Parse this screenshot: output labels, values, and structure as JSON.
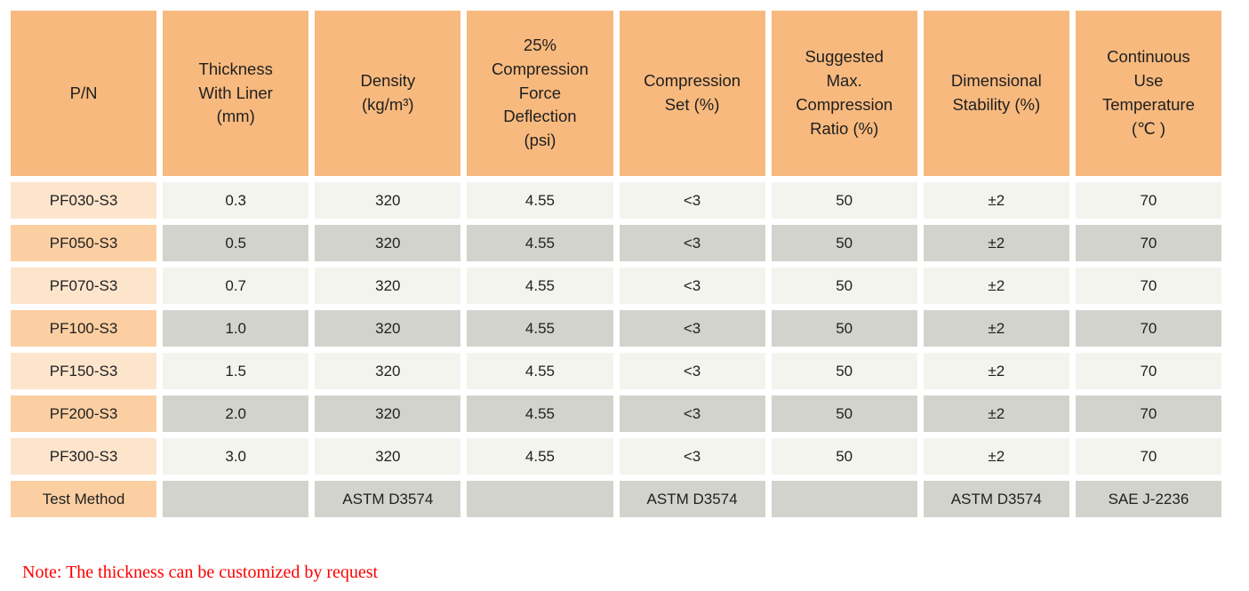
{
  "colors": {
    "header_bg": "#f7b97e",
    "pn_odd_bg": "#fde5cc",
    "pn_even_bg": "#fbcfa2",
    "cell_odd_bg": "#f4f4ef",
    "cell_even_bg": "#d3d3cd",
    "text": "#1f1f1f",
    "note": "#fe0000"
  },
  "table": {
    "columns": [
      {
        "id": "pn",
        "label": "P/N"
      },
      {
        "id": "thickness-with-liner",
        "label": "Thickness\nWith Liner\n(mm)"
      },
      {
        "id": "density",
        "label": "Density\n(kg/m³)"
      },
      {
        "id": "compression-force-deflection",
        "label": "25%\nCompression\nForce\nDeflection\n(psi)"
      },
      {
        "id": "compression-set",
        "label": "Compression\nSet (%)"
      },
      {
        "id": "suggested-max-compression-ratio",
        "label": "Suggested\nMax.\nCompression\nRatio (%)"
      },
      {
        "id": "dimensional-stability",
        "label": "Dimensional\nStability (%)"
      },
      {
        "id": "continuous-use-temperature",
        "label": "Continuous\nUse\nTemperature\n(℃ )"
      }
    ],
    "rows": [
      {
        "cells": [
          "PF030-S3",
          "0.3",
          "320",
          "4.55",
          "<3",
          "50",
          "±2",
          "70"
        ]
      },
      {
        "cells": [
          "PF050-S3",
          "0.5",
          "320",
          "4.55",
          "<3",
          "50",
          "±2",
          "70"
        ]
      },
      {
        "cells": [
          "PF070-S3",
          "0.7",
          "320",
          "4.55",
          "<3",
          "50",
          "±2",
          "70"
        ]
      },
      {
        "cells": [
          "PF100-S3",
          "1.0",
          "320",
          "4.55",
          "<3",
          "50",
          "±2",
          "70"
        ]
      },
      {
        "cells": [
          "PF150-S3",
          "1.5",
          "320",
          "4.55",
          "<3",
          "50",
          "±2",
          "70"
        ]
      },
      {
        "cells": [
          "PF200-S3",
          "2.0",
          "320",
          "4.55",
          "<3",
          "50",
          "±2",
          "70"
        ]
      },
      {
        "cells": [
          "PF300-S3",
          "3.0",
          "320",
          "4.55",
          "<3",
          "50",
          "±2",
          "70"
        ]
      },
      {
        "cells": [
          "Test Method",
          "",
          "ASTM D3574",
          "",
          "ASTM D3574",
          "",
          "ASTM D3574",
          "SAE J-2236"
        ]
      }
    ]
  },
  "note": "Note: The thickness can be customized by request"
}
